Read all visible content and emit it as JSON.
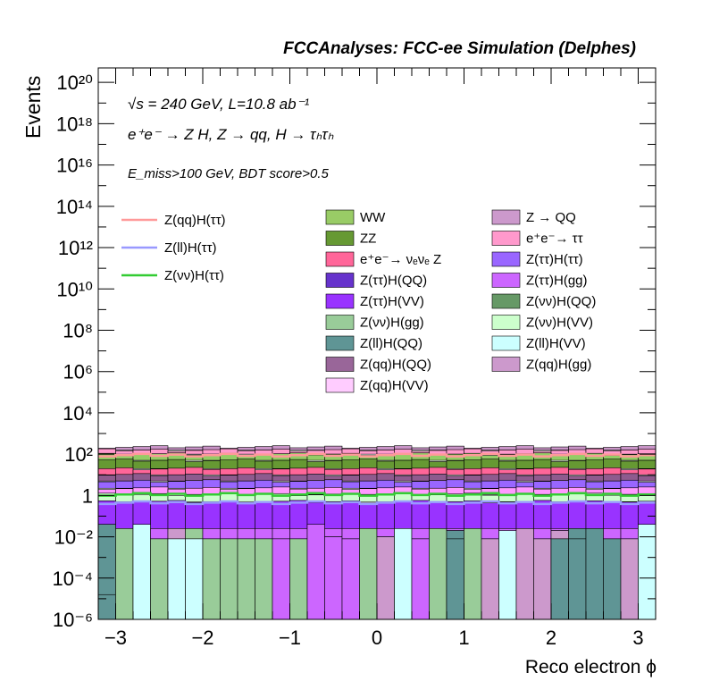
{
  "chart_data": {
    "type": "histogram",
    "title": "FCCAnalyses: FCC-ee Simulation (Delphes)",
    "annotations": [
      "√s = 240 GeV, L=10.8 ab⁻¹",
      "e⁺e⁻ → Z H, Z → qq, H → τₕτₕ",
      "E_miss>100 GeV, BDT score>0.5"
    ],
    "xlabel": "Reco electron ϕ",
    "ylabel": "Events",
    "xlim": [
      -3.2,
      3.2
    ],
    "ylim_log10": [
      -6,
      20.7
    ],
    "y_scale": "log",
    "x_ticks": [
      -3,
      -2,
      -1,
      0,
      1,
      2,
      3
    ],
    "x_tick_labels": [
      "−3",
      "−2",
      "−1",
      "0",
      "1",
      "2",
      "3"
    ],
    "y_ticks_log10": [
      -6,
      -4,
      -2,
      0,
      2,
      4,
      6,
      8,
      10,
      12,
      14,
      16,
      18,
      20
    ],
    "y_tick_labels": [
      "10⁻⁶",
      "10⁻⁴",
      "10⁻²",
      "1",
      "10²",
      "10⁴",
      "10⁶",
      "10⁸",
      "10¹⁰",
      "10¹²",
      "10¹⁴",
      "10¹⁶",
      "10¹⁸",
      "10²⁰"
    ],
    "grid": false,
    "n_bins": 32,
    "bin_edges_range": [
      -3.2,
      3.2
    ],
    "stack_bands_log10": [
      {
        "color": "#c994c7",
        "top": 2.35
      },
      {
        "color": "#ff99cc",
        "top": 2.2
      },
      {
        "color": "#94cc66",
        "top": 2.0
      },
      {
        "color": "#669933",
        "top": 1.7
      },
      {
        "color": "#ff6699",
        "top": 1.3
      },
      {
        "color": "#8e5b8e",
        "top": 1.0
      },
      {
        "color": "#9966ff",
        "top": 0.7
      },
      {
        "color": "#ff99ff",
        "top": 0.35
      },
      {
        "color": "#ccffcc",
        "top": 0.05
      },
      {
        "color": "#9933ff",
        "top": -0.3
      }
    ],
    "bottom_stack_log10": {
      "purple": [
        -1.4,
        -1.6,
        -1.6,
        -1.6,
        -1.6,
        -1.6,
        -1.6,
        -1.6,
        -1.6,
        -1.6,
        -1.6,
        -1.6,
        -1.6,
        -1.6,
        -1.6,
        -1.6,
        -1.6,
        -1.6,
        -1.6,
        -1.6,
        -1.6,
        -1.6,
        -1.6,
        -1.6,
        -1.6,
        -1.6,
        -1.6,
        -1.6,
        -1.6,
        -1.6,
        -1.6,
        -1.6
      ],
      "top": [
        -1.4,
        -1.6,
        -2.1,
        -2.1,
        -1.6,
        -1.6,
        -2.1,
        -2.1,
        -2.1,
        -2.1,
        -2.1,
        -2.1,
        -1.4,
        -2.0,
        -2.1,
        -1.6,
        -2.0,
        -1.6,
        -2.1,
        -1.6,
        -1.7,
        -1.6,
        -2.1,
        -2.1,
        -1.6,
        -2.1,
        -1.7,
        -1.6,
        -1.6,
        -2.1,
        -2.1,
        -1.6
      ],
      "top_color": [
        "#5f9595",
        "#99cc99",
        "#99cc99",
        "#99cc99",
        "#cc99cc",
        "#99cc99",
        "#99cc99",
        "#99cc99",
        "#99cc99",
        "#99cc99",
        "#cc66ff",
        "#99cc99",
        "#cc66ff",
        "#cc66ff",
        "#cc66ff",
        "#99cc99",
        "#cc99cc",
        "#cc99cc",
        "#cc66ff",
        "#99cc99",
        "#5f9595",
        "#99cc99",
        "#cc99cc",
        "#cc66ff",
        "#cc99cc",
        "#cc99cc",
        "#cc99cc",
        "#5f9595",
        "#5f9595",
        "#5f9595",
        "#cc99cc",
        "#99cc99"
      ],
      "teal_h": [
        -4.8,
        -7,
        -7,
        -7,
        -7,
        -7,
        -7,
        -7,
        -7,
        -7,
        -7,
        -7,
        -7,
        -7,
        -7,
        -7,
        -7,
        -7,
        -7,
        -7,
        -2.1,
        -7,
        -7,
        -7,
        -7,
        -7,
        -2.1,
        -2.1,
        -7,
        -7,
        -7,
        -7
      ],
      "cyan": [
        -7,
        -7,
        -1.4,
        -7,
        -2.1,
        -2.1,
        -7,
        -7,
        -7,
        -7,
        -7,
        -7,
        -7,
        -7,
        -7,
        -7,
        -7,
        -1.6,
        -7,
        -7,
        -7,
        -7,
        -7,
        -1.7,
        -7,
        -7,
        -2.1,
        -7,
        -7,
        -7,
        -7,
        -1.4
      ]
    },
    "series": [
      {
        "name": "Z(qq)H(ττ)",
        "color": "#ff9999",
        "kind": "line",
        "log10_level": 1.95
      },
      {
        "name": "Z(ll)H(ττ)",
        "color": "#9999ff",
        "kind": "line",
        "log10_level": -0.35
      },
      {
        "name": "Z(νν)H(ττ)",
        "color": "#33cc33",
        "kind": "line",
        "log10_level": 0.05
      },
      {
        "name": "WW",
        "color": "#99cc66",
        "kind": "fill"
      },
      {
        "name": "Z → QQ",
        "color": "#cc99cc",
        "kind": "fill"
      },
      {
        "name": "ZZ",
        "color": "#669933",
        "kind": "fill"
      },
      {
        "name": "e⁺e⁻→ ττ",
        "color": "#ff99cc",
        "kind": "fill"
      },
      {
        "name": "e⁺e⁻→ νₑνₑ Z",
        "color": "#ff6699",
        "kind": "fill"
      },
      {
        "name": "Z(ττ)H(ττ)",
        "color": "#9966ff",
        "kind": "fill"
      },
      {
        "name": "Z(ττ)H(QQ)",
        "color": "#6633cc",
        "kind": "fill"
      },
      {
        "name": "Z(ττ)H(gg)",
        "color": "#cc66ff",
        "kind": "fill"
      },
      {
        "name": "Z(ττ)H(VV)",
        "color": "#9933ff",
        "kind": "fill"
      },
      {
        "name": "Z(νν)H(QQ)",
        "color": "#669966",
        "kind": "fill"
      },
      {
        "name": "Z(νν)H(gg)",
        "color": "#99cc99",
        "kind": "fill"
      },
      {
        "name": "Z(νν)H(VV)",
        "color": "#ccffcc",
        "kind": "fill"
      },
      {
        "name": "Z(ll)H(QQ)",
        "color": "#5f9595",
        "kind": "fill"
      },
      {
        "name": "Z(ll)H(VV)",
        "color": "#ccffff",
        "kind": "fill"
      },
      {
        "name": "Z(qq)H(QQ)",
        "color": "#996699",
        "kind": "fill"
      },
      {
        "name": "Z(qq)H(gg)",
        "color": "#cc99cc",
        "kind": "fill"
      },
      {
        "name": "Z(qq)H(VV)",
        "color": "#ffccff",
        "kind": "fill"
      }
    ]
  }
}
